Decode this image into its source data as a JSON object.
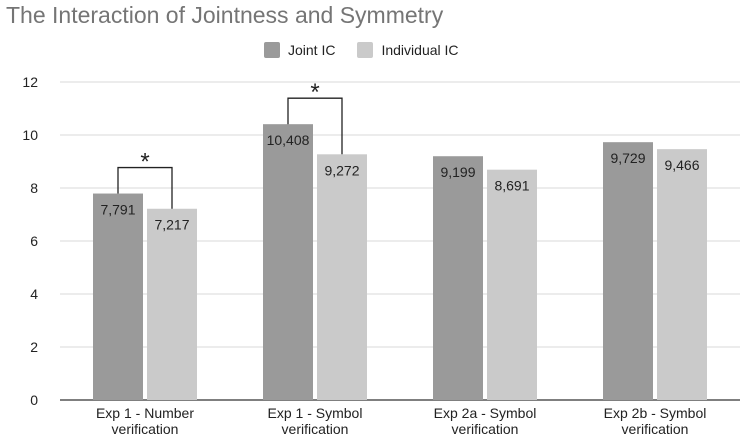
{
  "chart_data": {
    "type": "bar",
    "title": "The Interaction of Jointness and Symmetry",
    "xlabel": "",
    "ylabel": "",
    "ylim": [
      0,
      12
    ],
    "yticks": [
      0,
      2,
      4,
      6,
      8,
      10,
      12
    ],
    "grid": true,
    "legend_position": "top-center",
    "categories": [
      [
        "Exp 1 - Number",
        "verification"
      ],
      [
        "Exp 1 - Symbol",
        "verification"
      ],
      [
        "Exp 2a - Symbol",
        "verification"
      ],
      [
        "Exp 2b - Symbol",
        "verification"
      ]
    ],
    "series": [
      {
        "name": "Joint IC",
        "color": "#9a9a9a",
        "values": [
          7.791,
          10.408,
          9.199,
          9.729
        ],
        "labels": [
          "7,791",
          "10,408",
          "9,199",
          "9,729"
        ]
      },
      {
        "name": "Individual IC",
        "color": "#cacaca",
        "values": [
          7.217,
          9.272,
          8.691,
          9.466
        ],
        "labels": [
          "7,217",
          "9,272",
          "8,691",
          "9,466"
        ]
      }
    ],
    "significance": [
      {
        "category_index": 0,
        "symbol": "*"
      },
      {
        "category_index": 1,
        "symbol": "*"
      }
    ]
  }
}
